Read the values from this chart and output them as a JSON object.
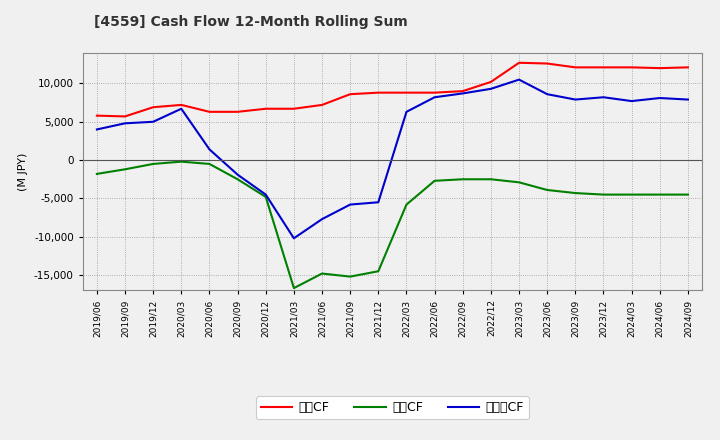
{
  "background_color": "#f0f0f0",
  "plot_background_color": "#f0f0f0",
  "grid_color": "#999999",
  "x_labels": [
    "2019/06",
    "2019/09",
    "2019/12",
    "2020/03",
    "2020/06",
    "2020/09",
    "2020/12",
    "2021/03",
    "2021/06",
    "2021/09",
    "2021/12",
    "2022/03",
    "2022/06",
    "2022/09",
    "2022/12",
    "2023/03",
    "2023/06",
    "2023/09",
    "2023/12",
    "2024/03",
    "2024/06",
    "2024/09"
  ],
  "operating_cf": [
    5800,
    5700,
    6900,
    7200,
    6300,
    6300,
    6700,
    6700,
    7200,
    8600,
    8800,
    8800,
    8800,
    9000,
    10200,
    12700,
    12600,
    12100,
    12100,
    12100,
    12000,
    12100
  ],
  "investing_cf": [
    -1800,
    -1200,
    -500,
    -200,
    -500,
    -2500,
    -4800,
    -16700,
    -14800,
    -15200,
    -14500,
    -5800,
    -2700,
    -2500,
    -2500,
    -2900,
    -3900,
    -4300,
    -4500,
    -4500,
    -4500,
    -4500
  ],
  "free_cf": [
    4000,
    4800,
    5000,
    6700,
    1400,
    -1900,
    -4500,
    -10200,
    -7700,
    -5800,
    -5500,
    6300,
    8200,
    8700,
    9300,
    10500,
    8600,
    7900,
    8200,
    7700,
    8100,
    7900
  ],
  "operating_color": "#ff0000",
  "investing_color": "#008000",
  "free_color": "#0000cd",
  "line_width": 1.5,
  "ylim": [
    -17000,
    14000
  ],
  "yticks": [
    -15000,
    -10000,
    -5000,
    0,
    5000,
    10000
  ],
  "legend_labels": [
    "営業CF",
    "投資CF",
    "フリーCF"
  ]
}
